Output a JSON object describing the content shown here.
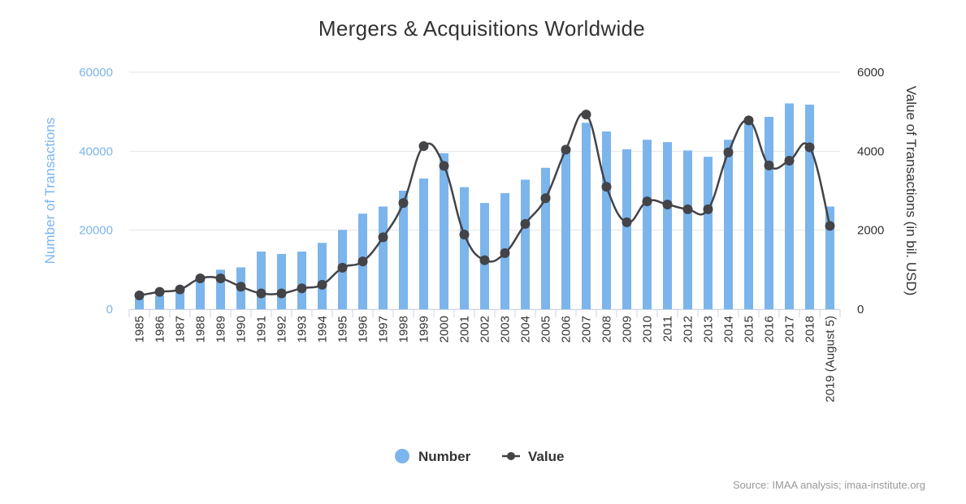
{
  "chart_data": {
    "type": "bar+line",
    "title": "Mergers & Acquisitions Worldwide",
    "source": "Source: IMAA analysis; imaa-institute.org",
    "categories": [
      "1985",
      "1986",
      "1987",
      "1988",
      "1989",
      "1990",
      "1991",
      "1992",
      "1993",
      "1994",
      "1995",
      "1996",
      "1997",
      "1998",
      "1999",
      "2000",
      "2001",
      "2002",
      "2003",
      "2004",
      "2005",
      "2006",
      "2007",
      "2008",
      "2009",
      "2010",
      "2011",
      "2012",
      "2013",
      "2014",
      "2015",
      "2016",
      "2017",
      "2018",
      "2019 (August 5)"
    ],
    "y_left": {
      "label": "Number of Transactions",
      "range": [
        0,
        60000
      ],
      "ticks": [
        "0",
        "20000",
        "40000",
        "60000"
      ],
      "tick_values": [
        0,
        20000,
        40000,
        60000
      ]
    },
    "y_right": {
      "label": "Value of Transactions (in bil. USD)",
      "range": [
        0,
        6000
      ],
      "ticks": [
        "0",
        "2000",
        "4000",
        "6000"
      ],
      "tick_values": [
        0,
        2000,
        4000,
        6000
      ]
    },
    "series": [
      {
        "name": "Number",
        "type": "bar",
        "axis": "left",
        "color": "#7cb5ec",
        "values": [
          2700,
          3500,
          4500,
          7800,
          10000,
          10600,
          14600,
          14000,
          14600,
          16800,
          20100,
          24200,
          26000,
          30000,
          33100,
          39500,
          30900,
          26900,
          29400,
          32800,
          35800,
          40800,
          47200,
          45000,
          40500,
          42900,
          42300,
          40200,
          38600,
          42900,
          47500,
          48700,
          52100,
          51800,
          26000
        ]
      },
      {
        "name": "Value",
        "type": "line",
        "axis": "right",
        "color": "#434348",
        "values": [
          350,
          440,
          500,
          780,
          780,
          570,
          400,
          400,
          530,
          620,
          1050,
          1210,
          1820,
          2690,
          4130,
          3630,
          1890,
          1240,
          1420,
          2160,
          2810,
          4040,
          4930,
          3100,
          2200,
          2730,
          2650,
          2530,
          2530,
          3970,
          4780,
          3640,
          3760,
          4100,
          2110
        ]
      }
    ],
    "grid": true,
    "legend": {
      "placement": "bottom-center",
      "items": [
        "Number",
        "Value"
      ]
    }
  }
}
